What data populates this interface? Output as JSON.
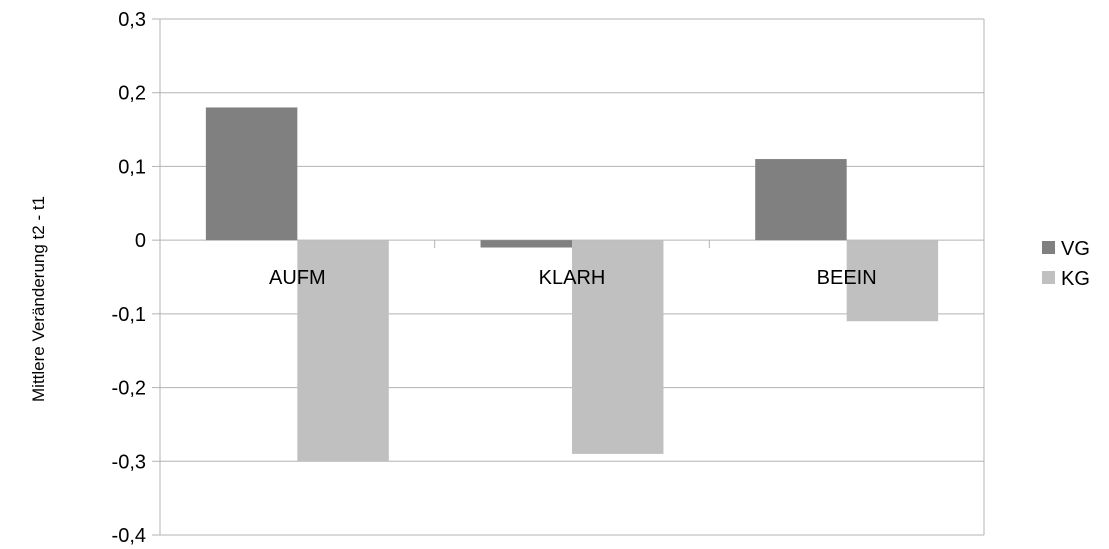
{
  "chart_data": {
    "type": "bar",
    "title": "",
    "xlabel": "",
    "ylabel": "Mittlere Veränderung t2 - t1",
    "categories": [
      "AUFM",
      "KLARH",
      "BEEIN"
    ],
    "series": [
      {
        "name": "VG",
        "values": [
          0.18,
          -0.01,
          0.11
        ],
        "color": "#808080"
      },
      {
        "name": "KG",
        "values": [
          -0.3,
          -0.29,
          -0.11
        ],
        "color": "#c0c0c0"
      }
    ],
    "ylim": [
      -0.4,
      0.3
    ],
    "yticks": [
      0.3,
      0.2,
      0.1,
      0,
      -0.1,
      -0.2,
      -0.3,
      -0.4
    ],
    "ytick_labels": [
      "0,3",
      "0,2",
      "0,1",
      "0",
      "-0,1",
      "-0,2",
      "-0,3",
      "-0,4"
    ],
    "grid": true,
    "legend_position": "right",
    "colors": {
      "grid": "#b3b3b3",
      "axis": "#b3b3b3"
    }
  }
}
